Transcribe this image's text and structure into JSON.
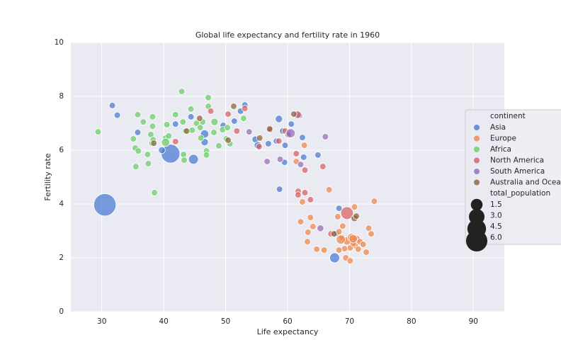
{
  "chart_data": {
    "type": "scatter",
    "title": "Global life expectancy and fertility rate in 1960",
    "x_label": "Life expectancy",
    "y_label": "Fertility rate",
    "xlim": [
      25,
      95
    ],
    "xticks": [
      30,
      40,
      50,
      60,
      70,
      80,
      90
    ],
    "ylim": [
      0,
      10
    ],
    "yticks": [
      0,
      2,
      4,
      6,
      8,
      10
    ],
    "grid": true,
    "legend_position": "right",
    "legend_title": "continent",
    "size_legend_title": "total_population",
    "size_legend": [
      1.5,
      {
        "value": 3,
        "label": "3.0"
      },
      4.5,
      {
        "value": 6,
        "label": "6.0"
      }
    ],
    "series": [
      {
        "name": "Asia",
        "color": "#4878d0",
        "x": [
          31.7,
          32.5,
          35.8,
          30.5,
          41.1,
          44.8,
          39.7,
          44.4,
          46.6,
          46.6,
          49.6,
          52.4,
          53.1,
          51.4,
          54.8,
          55.2,
          56.9,
          58.2,
          58.6,
          59.2,
          59.6,
          59.5,
          60.6,
          61.9,
          62.4,
          62.6,
          64.9,
          58.7,
          67.6,
          68.3,
          67.8,
          41.9,
          60.1
        ],
        "y": [
          7.66,
          7.3,
          6.66,
          3.97,
          5.87,
          5.66,
          6.0,
          7.24,
          6.6,
          6.3,
          6.92,
          7.45,
          7.68,
          7.08,
          6.4,
          6.18,
          6.24,
          6.34,
          7.16,
          6.71,
          6.18,
          5.55,
          6.97,
          7.29,
          6.47,
          5.74,
          5.82,
          4.55,
          2.0,
          3.84,
          2.9,
          6.97,
          6.63
        ],
        "size": [
          0.1,
          0.1,
          0.1,
          6.6,
          4.5,
          0.9,
          0.2,
          0.1,
          0.5,
          0.3,
          0.1,
          0.1,
          0.1,
          0.1,
          0.2,
          0.3,
          0.1,
          0.1,
          0.3,
          0.1,
          0.1,
          0.1,
          0.1,
          0.1,
          0.1,
          0.1,
          0.1,
          0.1,
          0.93,
          0.1,
          0.1,
          0.1,
          0.3
        ]
      },
      {
        "name": "Europe",
        "color": "#ee854a",
        "x": [
          61.4,
          62.7,
          66.7,
          74.0,
          62.4,
          63.7,
          62.1,
          64.1,
          63.3,
          63.2,
          64.7,
          65.9,
          68.1,
          68.9,
          68.8,
          69.6,
          70.3,
          71.1,
          71.7,
          72.2,
          70.9,
          70.1,
          69.2,
          68.3,
          69.4,
          70.1,
          72.7,
          73.1,
          73.5,
          70.8,
          68.3,
          70.6,
          71.4,
          68.6,
          70.6
        ],
        "y": [
          5.58,
          6.18,
          4.53,
          4.1,
          4.08,
          3.5,
          3.34,
          3.16,
          2.95,
          2.6,
          2.32,
          2.29,
          3.53,
          3.18,
          2.76,
          2.63,
          2.76,
          2.68,
          2.6,
          2.5,
          2.45,
          2.37,
          2.34,
          2.29,
          2.0,
          1.89,
          2.21,
          3.1,
          2.89,
          3.89,
          2.97,
          2.53,
          2.32,
          2.68,
          2.71
        ],
        "size": [
          0.1,
          0.1,
          0.1,
          0.1,
          0.1,
          0.1,
          0.1,
          0.1,
          0.1,
          0.1,
          0.1,
          0.1,
          0.1,
          0.1,
          0.1,
          0.5,
          0.4,
          0.5,
          0.1,
          0.1,
          0.1,
          0.1,
          0.1,
          0.1,
          0.1,
          0.1,
          0.1,
          0.1,
          0.1,
          0.1,
          0.1,
          0.1,
          0.1,
          0.7,
          0.5
        ]
      },
      {
        "name": "Africa",
        "color": "#6acc64",
        "x": [
          29.4,
          35.1,
          35.5,
          35.4,
          35.9,
          35.8,
          36.7,
          37.4,
          37.5,
          37.9,
          38.2,
          38.2,
          38.5,
          38.1,
          40.3,
          40.5,
          40.8,
          41.9,
          42.9,
          43.1,
          43.2,
          43.3,
          44.4,
          44.6,
          45.3,
          45.9,
          46.0,
          46.9,
          46.9,
          47.2,
          47.2,
          48.1,
          48.2,
          48.9,
          49.5,
          50.1,
          50.3,
          50.7,
          52.9,
          40.3,
          43.5,
          46.3,
          38.3
        ],
        "y": [
          6.68,
          6.42,
          5.39,
          6.08,
          5.97,
          7.32,
          7.05,
          5.84,
          5.5,
          6.58,
          7.24,
          6.89,
          4.42,
          6.26,
          6.45,
          6.95,
          6.53,
          7.32,
          8.18,
          7.05,
          5.84,
          5.63,
          7.53,
          6.74,
          7.0,
          6.84,
          6.45,
          5.97,
          5.82,
          7.63,
          7.95,
          6.66,
          7.05,
          6.16,
          6.76,
          6.42,
          6.84,
          6.24,
          7.18,
          6.29,
          6.71,
          7.05,
          6.39
        ],
        "size": [
          0.1,
          0.1,
          0.1,
          0.1,
          0.1,
          0.1,
          0.1,
          0.1,
          0.1,
          0.1,
          0.1,
          0.1,
          0.1,
          0.1,
          0.1,
          0.1,
          0.1,
          0.1,
          0.1,
          0.1,
          0.1,
          0.1,
          0.1,
          0.1,
          0.1,
          0.1,
          0.1,
          0.1,
          0.1,
          0.1,
          0.1,
          0.1,
          0.3,
          0.1,
          0.1,
          0.1,
          0.1,
          0.1,
          0.1,
          0.5,
          0.1,
          0.1,
          0.1
        ]
      },
      {
        "name": "North America",
        "color": "#d65f5f",
        "x": [
          41.9,
          47.6,
          50.4,
          51.8,
          53.1,
          55.4,
          57.2,
          58.6,
          59.6,
          60.2,
          61.6,
          61.4,
          62.8,
          65.7,
          61.7,
          61.7,
          62.8,
          63.7,
          69.6,
          67.0
        ],
        "y": [
          6.32,
          7.45,
          7.34,
          6.71,
          7.55,
          6.13,
          6.76,
          6.34,
          6.71,
          6.55,
          7.32,
          5.87,
          5.26,
          5.39,
          4.47,
          4.34,
          4.42,
          4.16,
          3.66,
          2.89
        ],
        "size": [
          0.1,
          0.1,
          0.1,
          0.1,
          0.1,
          0.1,
          0.1,
          0.1,
          0.1,
          0.1,
          0.35,
          0.1,
          0.1,
          0.1,
          0.1,
          0.1,
          0.1,
          0.1,
          1.8,
          0.1
        ]
      },
      {
        "name": "South America",
        "color": "#956cb4",
        "x": [
          53.8,
          56.7,
          58.8,
          60.1,
          60.5,
          66.1,
          65.3,
          62.1
        ],
        "y": [
          6.68,
          5.58,
          5.66,
          6.58,
          6.63,
          6.5,
          3.1,
          5.47
        ],
        "size": [
          0.1,
          0.1,
          0.1,
          0.1,
          0.7,
          0.1,
          0.2,
          0.1
        ]
      },
      {
        "name": "Australia and Oceania",
        "color": "#8c613c",
        "x": [
          38.4,
          43.7,
          45.8,
          51.3,
          50.4,
          55.5,
          57.1,
          61.0,
          70.8,
          71.1,
          67.5
        ],
        "y": [
          6.26,
          6.71,
          7.18,
          7.63,
          6.37,
          6.45,
          6.79,
          7.34,
          3.47,
          3.55,
          2.89
        ],
        "size": [
          0.1,
          0.1,
          0.1,
          0.1,
          0.1,
          0.1,
          0.1,
          0.1,
          0.2,
          0.1,
          0.1
        ]
      }
    ]
  }
}
